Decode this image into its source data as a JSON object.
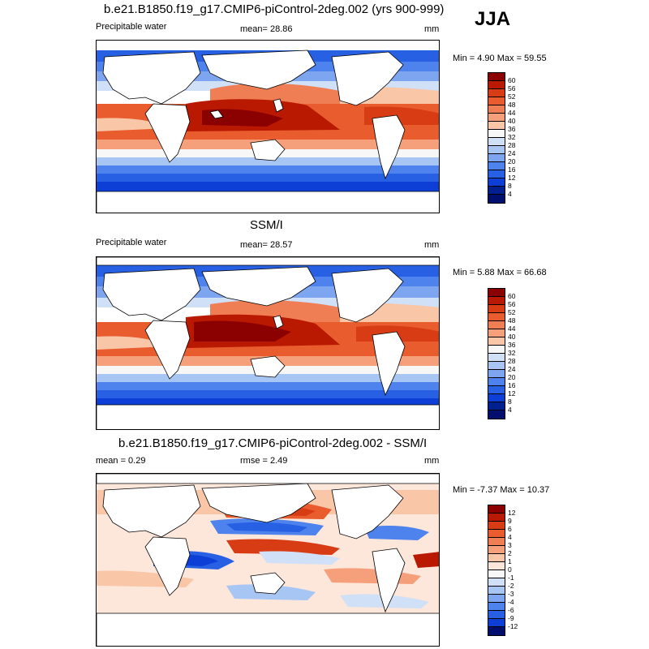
{
  "season": "JJA",
  "panels": [
    {
      "title": "b.e21.B1850.f19_g17.CMIP6-piControl-2deg.002 (yrs 900-999)",
      "left_label": "Precipitable water",
      "center_label": "mean=  28.86",
      "units": "mm",
      "minmax": "Min =   4.90 Max =  59.55",
      "colorbar_labels": [
        "60",
        "56",
        "52",
        "48",
        "44",
        "40",
        "36",
        "32",
        "28",
        "24",
        "20",
        "16",
        "12",
        "8",
        "4"
      ],
      "colors": [
        "#8b0000",
        "#b81900",
        "#d73c14",
        "#e85c2e",
        "#f07e54",
        "#f5a07a",
        "#f9c6a8",
        "#f7f7f7",
        "#cfe0f7",
        "#a8c6f4",
        "#7da5f0",
        "#4e82ec",
        "#2860e4",
        "#0d3fd6",
        "#00208f",
        "#000f6e"
      ]
    },
    {
      "title": "SSM/I",
      "left_label": "Precipitable water",
      "center_label": "mean=  28.57",
      "units": "mm",
      "minmax": "Min =   5.88 Max =  66.68",
      "colorbar_labels": [
        "60",
        "56",
        "52",
        "48",
        "44",
        "40",
        "36",
        "32",
        "28",
        "24",
        "20",
        "16",
        "12",
        "8",
        "4"
      ],
      "colors": [
        "#8b0000",
        "#b81900",
        "#d73c14",
        "#e85c2e",
        "#f07e54",
        "#f5a07a",
        "#f9c6a8",
        "#f7f7f7",
        "#cfe0f7",
        "#a8c6f4",
        "#7da5f0",
        "#4e82ec",
        "#2860e4",
        "#0d3fd6",
        "#00208f",
        "#000f6e"
      ]
    },
    {
      "title": "b.e21.B1850.f19_g17.CMIP6-piControl-2deg.002 - SSM/I",
      "left_label": "mean =   0.29",
      "center_label": "rmse =   2.49",
      "units": "mm",
      "minmax": "Min =  -7.37 Max =  10.37",
      "colorbar_labels": [
        "12",
        "9",
        "6",
        "4",
        "3",
        "2",
        "1",
        "0",
        "-1",
        "-2",
        "-3",
        "-4",
        "-6",
        "-9",
        "-12"
      ],
      "colors": [
        "#8b0000",
        "#b81900",
        "#d73c14",
        "#e85c2e",
        "#f07e54",
        "#f5a07a",
        "#f9c6a8",
        "#fde6da",
        "#f7f7f7",
        "#cfe0f7",
        "#a8c6f4",
        "#7da5f0",
        "#4e82ec",
        "#2860e4",
        "#0d3fd6",
        "#000f6e"
      ]
    }
  ]
}
